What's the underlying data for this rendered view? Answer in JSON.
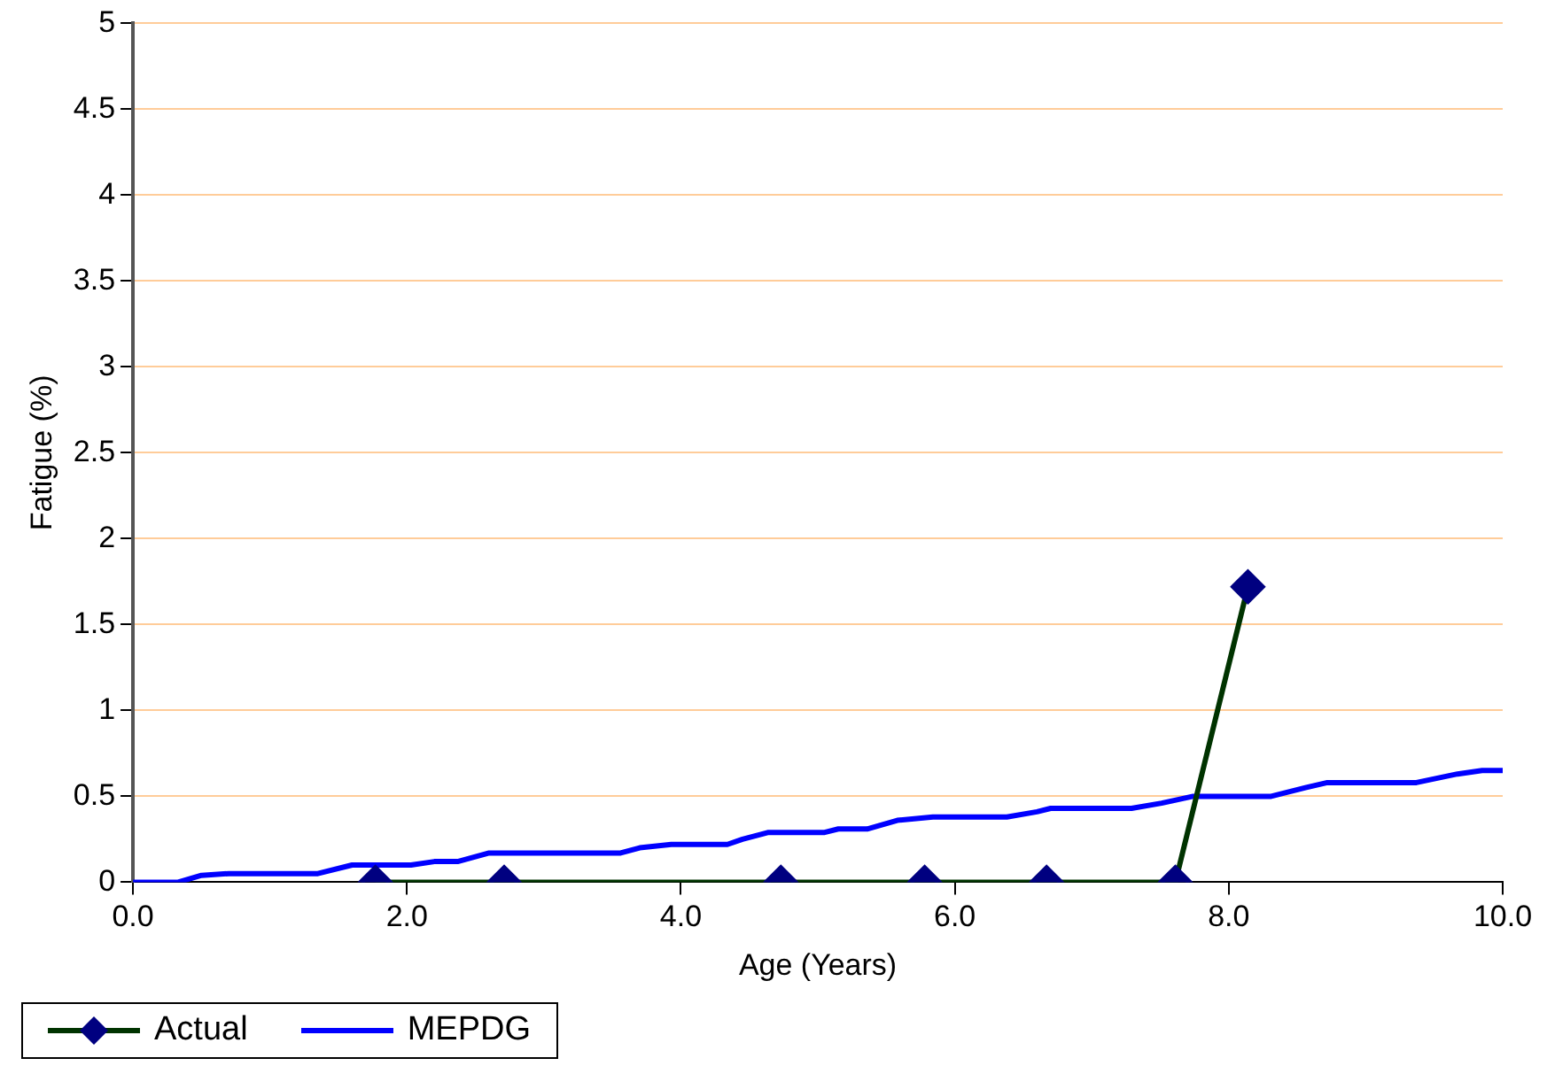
{
  "chart_data": {
    "type": "line",
    "xlabel": "Age (Years)",
    "ylabel": "Fatigue (%)",
    "xlim": [
      0,
      10
    ],
    "xticks": [
      {
        "value": 0,
        "label": "0.0"
      },
      {
        "value": 2,
        "label": "2.0"
      },
      {
        "value": 4,
        "label": "4.0"
      },
      {
        "value": 6,
        "label": "6.0"
      },
      {
        "value": 8,
        "label": "8.0"
      },
      {
        "value": 10,
        "label": "10.0"
      }
    ],
    "ylim": [
      0,
      5
    ],
    "yticks": [
      0,
      0.5,
      1,
      1.5,
      2,
      2.5,
      3,
      3.5,
      4,
      4.5,
      5
    ],
    "grid": "y",
    "legend": "bottom left",
    "series": [
      {
        "name": "Actual",
        "color": "#003300",
        "marker": "diamond",
        "x": [
          1.77,
          2.71,
          4.73,
          5.78,
          6.67,
          7.61,
          8.14
        ],
        "values": [
          0,
          0,
          0,
          0,
          0,
          0,
          1.72
        ]
      },
      {
        "name": "MEPDG",
        "color": "#0000ff",
        "marker": "none",
        "x": [
          0,
          0.33,
          0.5,
          0.7,
          1.35,
          1.6,
          2.03,
          2.2,
          2.37,
          2.6,
          3.56,
          3.7,
          3.93,
          4.34,
          4.45,
          4.64,
          5.05,
          5.15,
          5.36,
          5.58,
          5.84,
          6.38,
          6.6,
          6.7,
          7.29,
          7.51,
          7.74,
          8.31,
          8.56,
          8.72,
          9.37,
          9.67,
          9.85,
          10
        ],
        "values": [
          0,
          0,
          0.04,
          0.05,
          0.05,
          0.1,
          0.1,
          0.12,
          0.12,
          0.17,
          0.17,
          0.2,
          0.22,
          0.22,
          0.25,
          0.29,
          0.29,
          0.31,
          0.31,
          0.36,
          0.38,
          0.38,
          0.41,
          0.43,
          0.43,
          0.46,
          0.5,
          0.5,
          0.55,
          0.58,
          0.58,
          0.63,
          0.65,
          0.65
        ]
      }
    ]
  }
}
